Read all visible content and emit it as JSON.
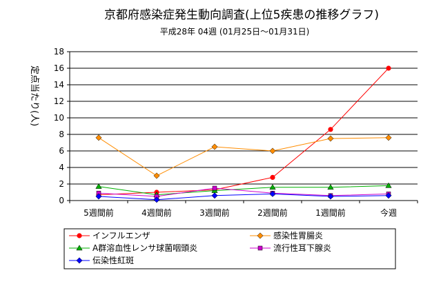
{
  "chart_data": {
    "type": "line",
    "title": "京都府感染症発生動向調査(上位5疾患の推移グラフ)",
    "subtitle": "平成28年 04週 (01月25日～01月31日)",
    "ylabel": "定点当たり(人)",
    "xlabel": "",
    "categories": [
      "5週間前",
      "4週間前",
      "3週間前",
      "2週間前",
      "1週間前",
      "今週"
    ],
    "ylim": [
      0,
      18
    ],
    "yticks": [
      0,
      2,
      4,
      6,
      8,
      10,
      12,
      14,
      16,
      18
    ],
    "grid": "horizontal",
    "legend_position": "bottom",
    "series": [
      {
        "name": "インフルエンザ",
        "color": "#ff0000",
        "marker": "circle",
        "values": [
          0.7,
          1.0,
          1.3,
          2.8,
          8.6,
          16.0
        ]
      },
      {
        "name": "感染性胃腸炎",
        "color": "#ff8c00",
        "marker": "diamond",
        "values": [
          7.6,
          3.0,
          6.5,
          6.0,
          7.5,
          7.6
        ]
      },
      {
        "name": "A群溶血性レンサ球菌咽頭炎",
        "color": "#00b000",
        "marker": "triangle",
        "values": [
          1.7,
          0.7,
          1.2,
          1.6,
          1.6,
          1.8
        ]
      },
      {
        "name": "流行性耳下腺炎",
        "color": "#cc00cc",
        "marker": "square",
        "values": [
          0.9,
          0.5,
          1.5,
          0.9,
          0.6,
          0.8
        ]
      },
      {
        "name": "伝染性紅斑",
        "color": "#0000ff",
        "marker": "diamond",
        "values": [
          0.5,
          0.1,
          0.6,
          0.8,
          0.5,
          0.6
        ]
      }
    ]
  }
}
